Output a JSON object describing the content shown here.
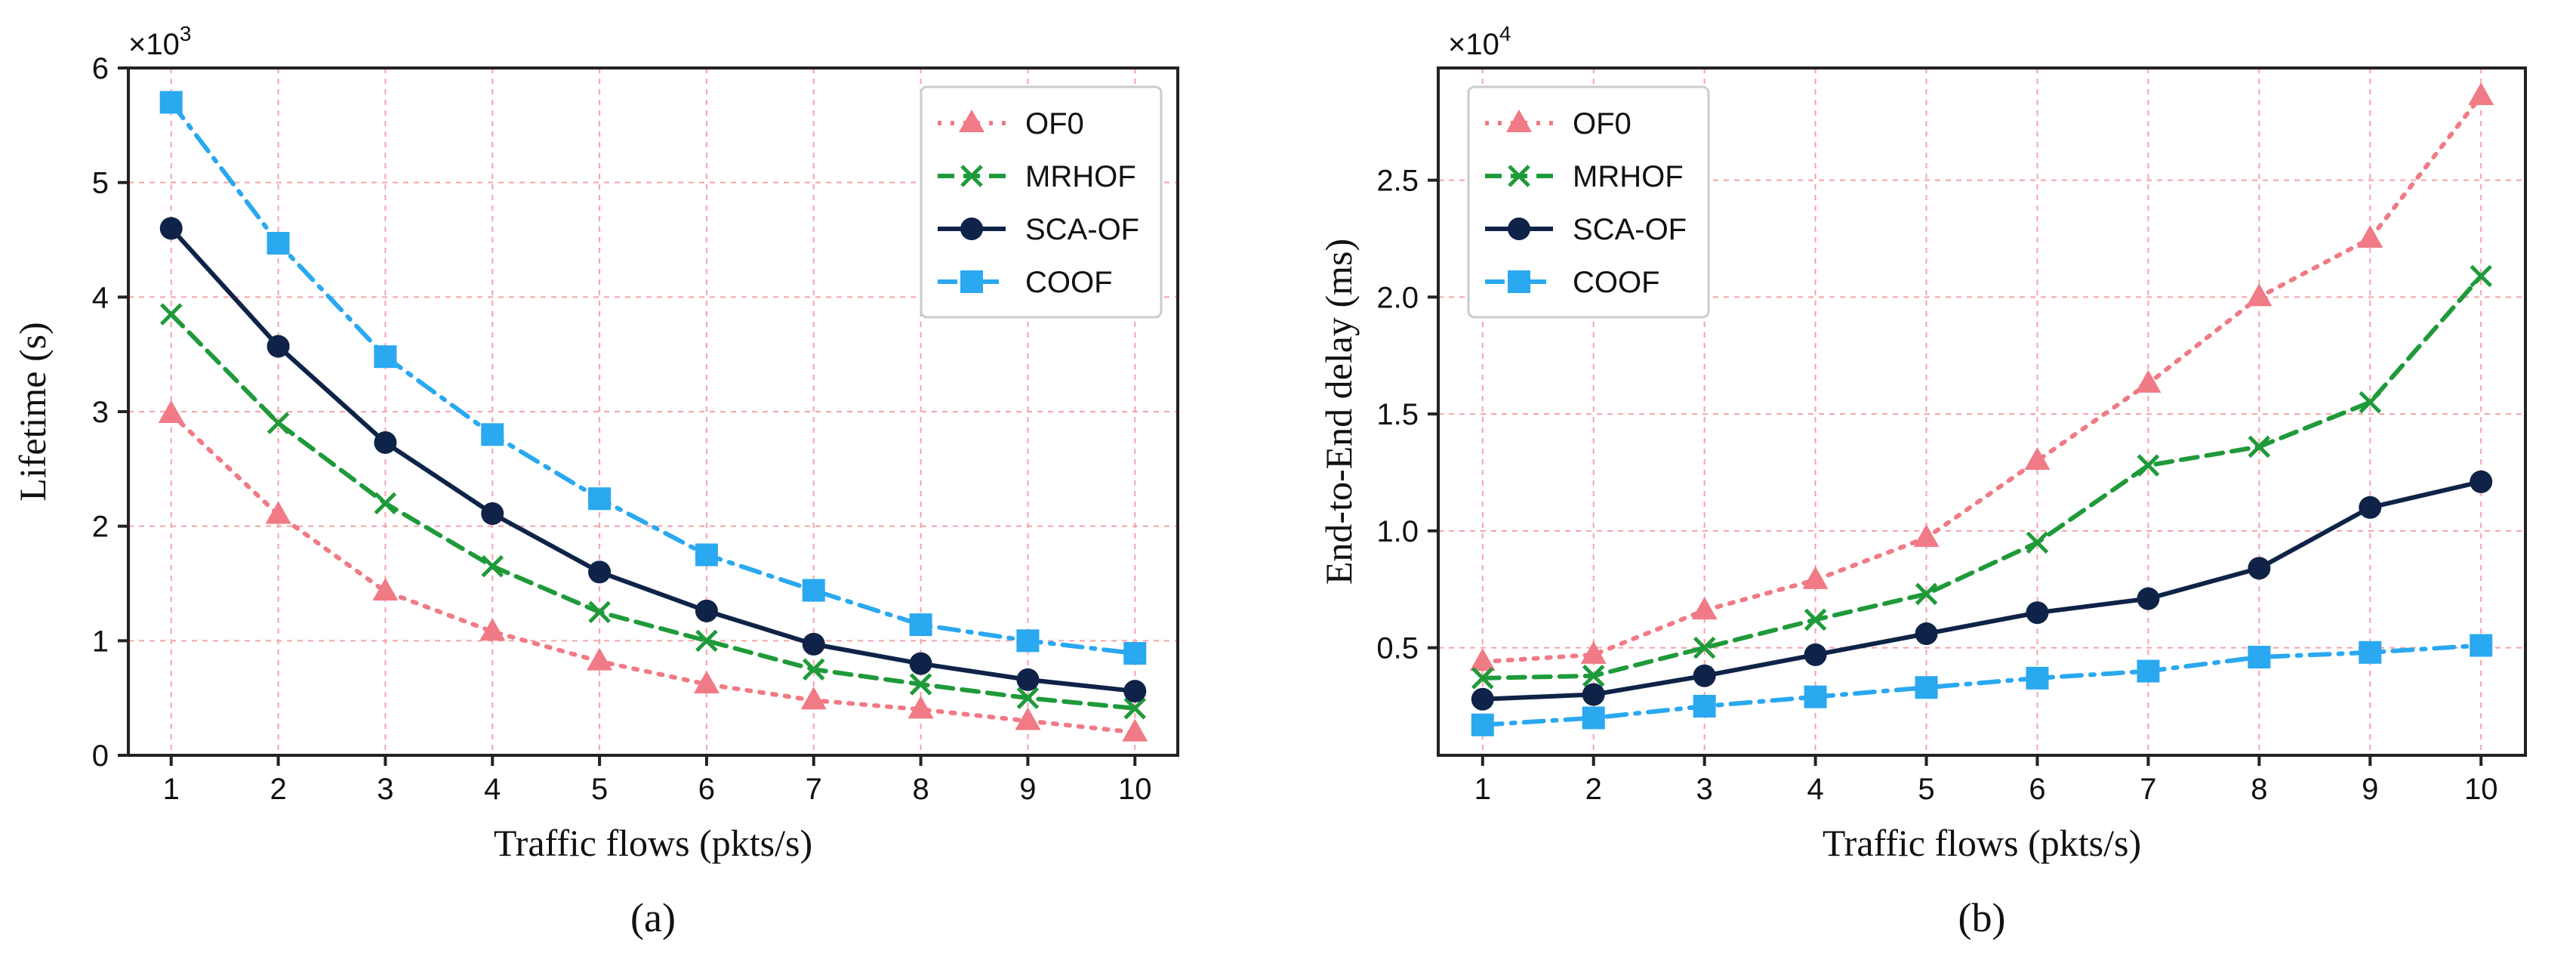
{
  "chart_data": [
    {
      "type": "line",
      "panel_caption": "(a)",
      "xlabel": "Traffic flows (pkts/s)",
      "ylabel": "Lifetime (s)",
      "scale_base": "×10",
      "scale_exponent": "3",
      "x": [
        1,
        2,
        3,
        4,
        5,
        6,
        7,
        8,
        9,
        10
      ],
      "x_ticks": [
        "1",
        "2",
        "3",
        "4",
        "5",
        "6",
        "7",
        "8",
        "9",
        "10"
      ],
      "xlim": [
        0.6,
        10.4
      ],
      "y_ticks": [
        0,
        1,
        2,
        3,
        4,
        5,
        6
      ],
      "y_tick_labels": [
        "0",
        "1",
        "2",
        "3",
        "4",
        "5",
        "6"
      ],
      "ylim": [
        0,
        6
      ],
      "grid": true,
      "legend_position": "top-right",
      "series": [
        {
          "name": "OF0",
          "color": "#f07a85",
          "marker": "triangle",
          "line_style": "dotted",
          "values": [
            2.98,
            2.1,
            1.43,
            1.08,
            0.82,
            0.62,
            0.48,
            0.4,
            0.3,
            0.2
          ]
        },
        {
          "name": "MRHOF",
          "color": "#1f9a3a",
          "marker": "x",
          "line_style": "dashed",
          "values": [
            3.85,
            2.9,
            2.2,
            1.65,
            1.25,
            1.0,
            0.75,
            0.62,
            0.5,
            0.41
          ]
        },
        {
          "name": "SCA-OF",
          "color": "#0e2347",
          "marker": "circle",
          "line_style": "solid",
          "values": [
            4.6,
            3.57,
            2.73,
            2.11,
            1.6,
            1.26,
            0.97,
            0.8,
            0.66,
            0.56
          ]
        },
        {
          "name": "COOF",
          "color": "#2aa8f0",
          "marker": "square",
          "line_style": "dashdot",
          "values": [
            5.7,
            4.47,
            3.48,
            2.8,
            2.24,
            1.75,
            1.44,
            1.14,
            1.0,
            0.89
          ]
        }
      ]
    },
    {
      "type": "line",
      "panel_caption": "(b)",
      "xlabel": "Traffic flows (pkts/s)",
      "ylabel": "End-to-End delay (ms)",
      "scale_base": "×10",
      "scale_exponent": "4",
      "x": [
        1,
        2,
        3,
        4,
        5,
        6,
        7,
        8,
        9,
        10
      ],
      "x_ticks": [
        "1",
        "2",
        "3",
        "4",
        "5",
        "6",
        "7",
        "8",
        "9",
        "10"
      ],
      "xlim": [
        0.6,
        10.4
      ],
      "y_ticks": [
        0.5,
        1.0,
        1.5,
        2.0,
        2.5
      ],
      "y_tick_labels": [
        "0.5",
        "1.0",
        "1.5",
        "2.0",
        "2.5"
      ],
      "ylim": [
        0.04,
        2.98
      ],
      "grid": true,
      "legend_position": "top-left",
      "series": [
        {
          "name": "OF0",
          "color": "#f07a85",
          "marker": "triangle",
          "line_style": "dotted",
          "values": [
            0.44,
            0.47,
            0.66,
            0.79,
            0.97,
            1.3,
            1.63,
            2.0,
            2.25,
            2.86
          ]
        },
        {
          "name": "MRHOF",
          "color": "#1f9a3a",
          "marker": "x",
          "line_style": "dashed",
          "values": [
            0.37,
            0.38,
            0.5,
            0.62,
            0.73,
            0.95,
            1.28,
            1.36,
            1.55,
            2.09
          ]
        },
        {
          "name": "SCA-OF",
          "color": "#0e2347",
          "marker": "circle",
          "line_style": "solid",
          "values": [
            0.28,
            0.3,
            0.38,
            0.47,
            0.56,
            0.65,
            0.71,
            0.84,
            1.1,
            1.21
          ]
        },
        {
          "name": "COOF",
          "color": "#2aa8f0",
          "marker": "square",
          "line_style": "dashdot",
          "values": [
            0.17,
            0.2,
            0.25,
            0.29,
            0.33,
            0.37,
            0.4,
            0.46,
            0.48,
            0.51
          ]
        }
      ]
    }
  ]
}
